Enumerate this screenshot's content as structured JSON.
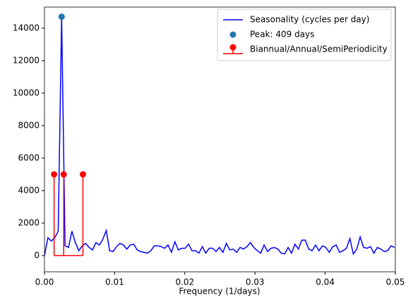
{
  "chart_data": {
    "type": "line",
    "xlabel": "Frequency (1/days)",
    "xlim": [
      0,
      0.05
    ],
    "ylim": [
      -1000,
      15300
    ],
    "xticks": [
      {
        "value": 0,
        "label": "0.00"
      },
      0.01,
      0.02,
      0.03,
      0.04,
      0.05
    ],
    "yticks": [
      0,
      2000,
      4000,
      6000,
      8000,
      10000,
      12000,
      14000
    ],
    "legend": "upper right",
    "series": [
      {
        "type": "line",
        "name": "Seasonality (cycles per day)",
        "color": "#0000ff",
        "x": [
          0,
          0.000489,
          0.000978,
          0.001467,
          0.001956,
          0.002445,
          0.002934,
          0.003423,
          0.003912,
          0.004401,
          0.00489,
          0.005379,
          0.005868,
          0.006357,
          0.006846,
          0.007335,
          0.007824,
          0.008313,
          0.008802,
          0.009291,
          0.00978,
          0.010269,
          0.010758,
          0.011247,
          0.011736,
          0.012225,
          0.012714,
          0.013203,
          0.013692,
          0.014181,
          0.01467,
          0.015159,
          0.015648,
          0.016137,
          0.016626,
          0.017115,
          0.017604,
          0.018093,
          0.018582,
          0.019071,
          0.01956,
          0.020049,
          0.020538,
          0.021027,
          0.021516,
          0.022005,
          0.022494,
          0.022983,
          0.023472,
          0.023961,
          0.02445,
          0.024939,
          0.025428,
          0.025917,
          0.026406,
          0.026895,
          0.027384,
          0.027873,
          0.028362,
          0.028851,
          0.02934,
          0.029829,
          0.030318,
          0.030807,
          0.031296,
          0.031785,
          0.032274,
          0.032763,
          0.033252,
          0.033741,
          0.03423,
          0.034719,
          0.035208,
          0.035697,
          0.036186,
          0.036675,
          0.037164,
          0.037653,
          0.038142,
          0.038631,
          0.03912,
          0.039609,
          0.040098,
          0.040587,
          0.041076,
          0.041565,
          0.042054,
          0.042543,
          0.043032,
          0.043521,
          0.04401,
          0.044499,
          0.044988,
          0.045477,
          0.045966,
          0.046455,
          0.046944,
          0.047433,
          0.047922,
          0.048411,
          0.0489,
          0.049389,
          0.049878
        ],
        "values": [
          0,
          1100,
          900,
          1100,
          1500,
          14700,
          600,
          500,
          1500,
          800,
          300,
          600,
          750,
          500,
          350,
          800,
          650,
          1000,
          1550,
          300,
          250,
          550,
          750,
          650,
          400,
          650,
          700,
          350,
          250,
          200,
          150,
          300,
          600,
          600,
          550,
          450,
          650,
          200,
          850,
          350,
          450,
          450,
          700,
          300,
          300,
          150,
          550,
          150,
          450,
          450,
          250,
          500,
          200,
          750,
          350,
          400,
          200,
          500,
          400,
          550,
          800,
          500,
          300,
          150,
          650,
          250,
          450,
          500,
          400,
          150,
          100,
          500,
          150,
          700,
          400,
          950,
          950,
          400,
          300,
          650,
          300,
          600,
          500,
          200,
          550,
          650,
          200,
          300,
          450,
          1050,
          100,
          400,
          1150,
          500,
          450,
          550,
          150,
          500,
          400,
          250,
          300,
          600,
          500
        ]
      },
      {
        "type": "scatter",
        "name": "Peak: 409 days",
        "color": "#1f77b4",
        "x": [
          0.002445
        ],
        "values": [
          14700
        ]
      },
      {
        "type": "stem",
        "name": "Biannual/Annual/SemiPeriodicity",
        "color": "#ff0000",
        "x": [
          0.00137,
          0.00274,
          0.00548
        ],
        "values": [
          5000,
          5000,
          5000
        ]
      }
    ]
  }
}
